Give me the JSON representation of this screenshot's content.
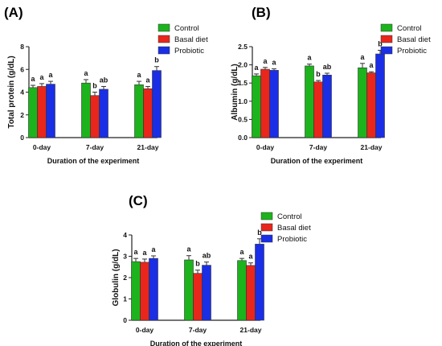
{
  "colors": {
    "series": [
      "#1db31d",
      "#e8261c",
      "#1a2ee6"
    ],
    "axis": "#222222",
    "text": "#111111"
  },
  "chart_data": [
    {
      "panel": "(A)",
      "type": "bar",
      "categories": [
        "0-day",
        "7-day",
        "21-day"
      ],
      "xlabel": "Duration of the experiment",
      "ylabel": "Total protein (g/dL)",
      "ylim": [
        0,
        8
      ],
      "yticks": [
        "0",
        "2",
        "4",
        "6",
        "8"
      ],
      "legend": "top-right",
      "series": [
        {
          "name": "Control",
          "values": [
            4.4,
            4.8,
            4.65
          ],
          "errors": [
            0.2,
            0.3,
            0.3
          ],
          "letters": [
            "a",
            "a",
            "a"
          ]
        },
        {
          "name": "Basal diet",
          "values": [
            4.5,
            3.7,
            4.3
          ],
          "errors": [
            0.25,
            0.3,
            0.2
          ],
          "letters": [
            "a",
            "b",
            "a"
          ]
        },
        {
          "name": "Probiotic",
          "values": [
            4.7,
            4.25,
            5.9
          ],
          "errors": [
            0.25,
            0.25,
            0.35
          ],
          "letters": [
            "a",
            "ab",
            "b"
          ]
        }
      ]
    },
    {
      "panel": "(B)",
      "type": "bar",
      "categories": [
        "0-day",
        "7-day",
        "21-day"
      ],
      "xlabel": "Duration of the experiment",
      "ylabel": "Albumin (g/dL)",
      "ylim": [
        0,
        2.5
      ],
      "yticks": [
        "0.0",
        "0.5",
        "1.0",
        "1.5",
        "2.0",
        "2.5"
      ],
      "legend": "top-right",
      "series": [
        {
          "name": "Control",
          "values": [
            1.7,
            1.97,
            1.92
          ],
          "errors": [
            0.05,
            0.05,
            0.12
          ],
          "letters": [
            "a",
            "a",
            "a"
          ]
        },
        {
          "name": "Basal diet",
          "values": [
            1.88,
            1.53,
            1.78
          ],
          "errors": [
            0.05,
            0.04,
            0.03
          ],
          "letters": [
            "a",
            "b",
            "a"
          ]
        },
        {
          "name": "Probiotic",
          "values": [
            1.85,
            1.72,
            2.3
          ],
          "errors": [
            0.04,
            0.05,
            0.1
          ],
          "letters": [
            "a",
            "ab",
            "b"
          ]
        }
      ]
    },
    {
      "panel": "(C)",
      "type": "bar",
      "categories": [
        "0-day",
        "7-day",
        "21-day"
      ],
      "xlabel": "Duration of the experiment",
      "ylabel": "Globulin (g/dL)",
      "ylim": [
        0,
        4
      ],
      "yticks": [
        "0",
        "1",
        "2",
        "3",
        "4"
      ],
      "legend": "top-right",
      "series": [
        {
          "name": "Control",
          "values": [
            2.75,
            2.83,
            2.8
          ],
          "errors": [
            0.15,
            0.2,
            0.1
          ],
          "letters": [
            "a",
            "a",
            "a"
          ]
        },
        {
          "name": "Basal diet",
          "values": [
            2.72,
            2.2,
            2.57
          ],
          "errors": [
            0.15,
            0.15,
            0.12
          ],
          "letters": [
            "a",
            "b",
            "a"
          ]
        },
        {
          "name": "Probiotic",
          "values": [
            2.9,
            2.58,
            3.57
          ],
          "errors": [
            0.12,
            0.15,
            0.25
          ],
          "letters": [
            "a",
            "ab",
            "b"
          ]
        }
      ]
    }
  ]
}
